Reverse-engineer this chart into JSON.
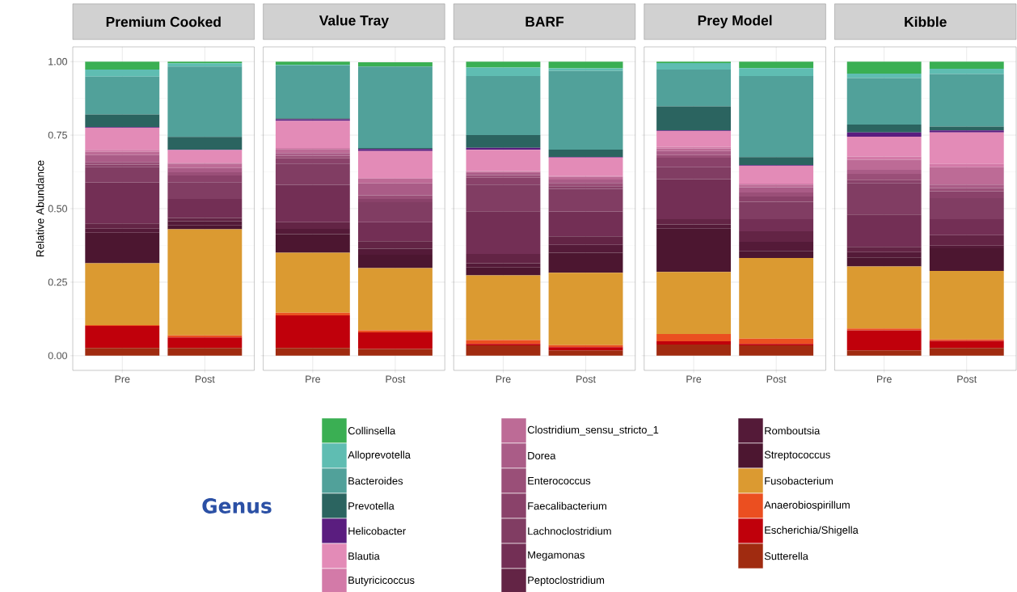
{
  "chart_data": [
    {
      "type": "bar",
      "stacked": true,
      "title": "Premium Cooked",
      "ylabel": "Relative Abundance",
      "legend": "bottom",
      "legend_title": "Genus",
      "grid": true,
      "categories": [
        "Pre",
        "Post"
      ],
      "ylim": [
        -0.05,
        1.05
      ],
      "yticks": [
        {
          "value": 0,
          "label": "0.00"
        },
        {
          "value": 0.25,
          "label": "0.25"
        },
        {
          "value": 0.5,
          "label": "0.50"
        },
        {
          "value": 0.75,
          "label": "0.75"
        },
        {
          "value": 1,
          "label": "1.00"
        }
      ],
      "series": [
        {
          "name": "Sutterella",
          "color": "#a02b10",
          "values": [
            0.026,
            0.026
          ]
        },
        {
          "name": "Escherichia/Shigella",
          "color": "#c0000b",
          "values": [
            0.075,
            0.036
          ]
        },
        {
          "name": "Anaerobiospirillum",
          "color": "#eb4f20",
          "values": [
            0.003,
            0.007
          ]
        },
        {
          "name": "Fusobacterium",
          "color": "#db9a31",
          "values": [
            0.21,
            0.361
          ]
        },
        {
          "name": "Streptococcus",
          "color": "#4c1630",
          "values": [
            0.104,
            0.013
          ]
        },
        {
          "name": "Romboutsia",
          "color": "#541a38",
          "values": [
            0.014,
            0.014
          ]
        },
        {
          "name": "Peptoclostridium",
          "color": "#632445",
          "values": [
            0.018,
            0.011
          ]
        },
        {
          "name": "Megamonas",
          "color": "#732f55",
          "values": [
            0.139,
            0.065
          ]
        },
        {
          "name": "Lachnoclostridium",
          "color": "#813d63",
          "values": [
            0.052,
            0.057
          ]
        },
        {
          "name": "Faecalibacterium",
          "color": "#8a426a",
          "values": [
            0.009,
            0.023
          ]
        },
        {
          "name": "Enterococcus",
          "color": "#9a4f78",
          "values": [
            0.009,
            0.011
          ]
        },
        {
          "name": "Dorea",
          "color": "#aa5c87",
          "values": [
            0.023,
            0.014
          ]
        },
        {
          "name": "Clostridium_sensu_stricto_1",
          "color": "#bd6b96",
          "values": [
            0.012,
            0.015
          ]
        },
        {
          "name": "Butyricicoccus",
          "color": "#d37aa8",
          "values": [
            0.006,
            0.003
          ]
        },
        {
          "name": "Blautia",
          "color": "#e38bb7",
          "values": [
            0.075,
            0.043
          ]
        },
        {
          "name": "Helicobacter",
          "color": "#5a1d7f",
          "values": [
            0.002,
            0.002
          ]
        },
        {
          "name": "Prevotella",
          "color": "#2b6460",
          "values": [
            0.043,
            0.043
          ]
        },
        {
          "name": "Bacteroides",
          "color": "#51a19a",
          "values": [
            0.129,
            0.239
          ]
        },
        {
          "name": "Alloprevotella",
          "color": "#5fbdb2",
          "values": [
            0.024,
            0.011
          ]
        },
        {
          "name": "Collinsella",
          "color": "#3aaf53",
          "values": [
            0.027,
            0.006
          ]
        }
      ]
    },
    {
      "type": "bar",
      "stacked": true,
      "title": "Value Tray",
      "grid": true,
      "tick_labels": "x",
      "categories": [
        "Pre",
        "Post"
      ],
      "ylim": [
        -0.05,
        1.05
      ],
      "yticks": [
        0,
        0.25,
        0.5,
        0.75,
        1
      ],
      "series": [
        {
          "color": "#a02b10",
          "values": [
            0.026,
            0.023
          ]
        },
        {
          "color": "#c0000b",
          "values": [
            0.111,
            0.056
          ]
        },
        {
          "color": "#eb4f20",
          "values": [
            0.009,
            0.007
          ]
        },
        {
          "color": "#db9a31",
          "values": [
            0.204,
            0.212
          ]
        },
        {
          "color": "#4c1630",
          "values": [
            0.063,
            0.045
          ]
        },
        {
          "color": "#541a38",
          "values": [
            0.018,
            0.021
          ]
        },
        {
          "color": "#632445",
          "values": [
            0.023,
            0.025
          ]
        },
        {
          "color": "#732f55",
          "values": [
            0.127,
            0.065
          ]
        },
        {
          "color": "#813d63",
          "values": [
            0.072,
            0.068
          ]
        },
        {
          "color": "#8a426a",
          "values": [
            0.018,
            0.011
          ]
        },
        {
          "color": "#9a4f78",
          "values": [
            0.009,
            0.012
          ]
        },
        {
          "color": "#aa5c87",
          "values": [
            0.009,
            0.041
          ]
        },
        {
          "color": "#bd6b96",
          "values": [
            0.014,
            0.016
          ]
        },
        {
          "color": "#d37aa8",
          "values": [
            0.003,
            0.002
          ]
        },
        {
          "color": "#e38bb7",
          "values": [
            0.092,
            0.092
          ]
        },
        {
          "color": "#5a1d7f",
          "values": [
            0.006,
            0.007
          ]
        },
        {
          "color": "#2b6460",
          "values": [
            0.003,
            0.003
          ]
        },
        {
          "color": "#51a19a",
          "values": [
            0.18,
            0.277
          ]
        },
        {
          "color": "#5fbdb2",
          "values": [
            0.002,
            null
          ]
        },
        {
          "color": "#3aaf53",
          "values": [
            0.011,
            0.015
          ]
        }
      ]
    },
    {
      "type": "bar",
      "stacked": true,
      "title": "BARF",
      "grid": true,
      "tick_labels": "x",
      "categories": [
        "Pre",
        "Post"
      ],
      "ylim": [
        -0.05,
        1.05
      ],
      "yticks": [
        0,
        0.25,
        0.5,
        0.75,
        1
      ],
      "series": [
        {
          "color": "#a02b10",
          "values": [
            0.035,
            0.018
          ]
        },
        {
          "color": "#c0000b",
          "values": [
            0.005,
            0.011
          ]
        },
        {
          "color": "#eb4f20",
          "values": [
            0.013,
            0.007
          ]
        },
        {
          "color": "#db9a31",
          "values": [
            0.22,
            0.246
          ]
        },
        {
          "color": "#4c1630",
          "values": [
            0.027,
            0.068
          ]
        },
        {
          "color": "#541a38",
          "values": [
            0.014,
            0.027
          ]
        },
        {
          "color": "#632445",
          "values": [
            0.032,
            0.029
          ]
        },
        {
          "color": "#732f55",
          "values": [
            0.145,
            0.084
          ]
        },
        {
          "color": "#813d63",
          "values": [
            0.091,
            0.077
          ]
        },
        {
          "color": "#8a426a",
          "values": [
            0.023,
            0.009
          ]
        },
        {
          "color": "#9a4f78",
          "values": [
            0.009,
            0.011
          ]
        },
        {
          "color": "#aa5c87",
          "values": [
            0.007,
            0.012
          ]
        },
        {
          "color": "#bd6b96",
          "values": [
            0.005,
            0.009
          ]
        },
        {
          "color": "#d37aa8",
          "values": [
            0.002,
            0.003
          ]
        },
        {
          "color": "#e38bb7",
          "values": [
            0.072,
            0.063
          ]
        },
        {
          "color": "#5a1d7f",
          "values": [
            0.007,
            0.002
          ]
        },
        {
          "color": "#2b6460",
          "values": [
            0.043,
            0.025
          ]
        },
        {
          "color": "#51a19a",
          "values": [
            0.201,
            0.268
          ]
        },
        {
          "color": "#5fbdb2",
          "values": [
            0.029,
            0.008
          ]
        },
        {
          "color": "#3aaf53",
          "values": [
            0.02,
            0.023
          ]
        }
      ]
    },
    {
      "type": "bar",
      "stacked": true,
      "title": "Prey Model",
      "grid": true,
      "tick_labels": "x",
      "categories": [
        "Pre",
        "Post"
      ],
      "ylim": [
        -0.05,
        1.05
      ],
      "yticks": [
        0,
        0.25,
        0.5,
        0.75,
        1
      ],
      "series": [
        {
          "color": "#a02b10",
          "values": [
            0.038,
            0.035
          ]
        },
        {
          "color": "#c0000b",
          "values": [
            0.011,
            0.005
          ]
        },
        {
          "color": "#eb4f20",
          "values": [
            0.025,
            0.018
          ]
        },
        {
          "color": "#db9a31",
          "values": [
            0.211,
            0.274
          ]
        },
        {
          "color": "#4c1630",
          "values": [
            0.147,
            0.023
          ]
        },
        {
          "color": "#541a38",
          "values": [
            0.014,
            0.032
          ]
        },
        {
          "color": "#632445",
          "values": [
            0.018,
            0.036
          ]
        },
        {
          "color": "#732f55",
          "values": [
            0.136,
            0.041
          ]
        },
        {
          "color": "#813d63",
          "values": [
            0.041,
            0.059
          ]
        },
        {
          "color": "#8a426a",
          "values": [
            0.032,
            0.018
          ]
        },
        {
          "color": "#9a4f78",
          "values": [
            0.009,
            0.014
          ]
        },
        {
          "color": "#aa5c87",
          "values": [
            0.014,
            0.018
          ]
        },
        {
          "color": "#bd6b96",
          "values": [
            0.009,
            0.009
          ]
        },
        {
          "color": "#d37aa8",
          "values": [
            0.005,
            0.003
          ]
        },
        {
          "color": "#e38bb7",
          "values": [
            0.054,
            0.061
          ]
        },
        {
          "color": "#5a1d7f",
          "values": [
            0.002,
            0.002
          ]
        },
        {
          "color": "#2b6460",
          "values": [
            0.082,
            0.027
          ]
        },
        {
          "color": "#51a19a",
          "values": [
            0.125,
            0.276
          ]
        },
        {
          "color": "#5fbdb2",
          "values": [
            0.022,
            0.027
          ]
        },
        {
          "color": "#3aaf53",
          "values": [
            0.005,
            0.022
          ]
        }
      ]
    },
    {
      "type": "bar",
      "stacked": true,
      "title": "Kibble",
      "grid": true,
      "tick_labels": "x",
      "categories": [
        "Pre",
        "Post"
      ],
      "ylim": [
        -0.05,
        1.05
      ],
      "yticks": [
        0,
        0.25,
        0.5,
        0.75,
        1
      ],
      "series": [
        {
          "color": "#a02b10",
          "values": [
            0.018,
            0.026
          ]
        },
        {
          "color": "#c0000b",
          "values": [
            0.068,
            0.024
          ]
        },
        {
          "color": "#eb4f20",
          "values": [
            0.006,
            0.005
          ]
        },
        {
          "color": "#db9a31",
          "values": [
            0.211,
            0.233
          ]
        },
        {
          "color": "#4c1630",
          "values": [
            0.031,
            0.077
          ]
        },
        {
          "color": "#541a38",
          "values": [
            0.018,
            0.009
          ]
        },
        {
          "color": "#632445",
          "values": [
            0.018,
            0.036
          ]
        },
        {
          "color": "#732f55",
          "values": [
            0.11,
            0.054
          ]
        },
        {
          "color": "#813d63",
          "values": [
            0.106,
            0.072
          ]
        },
        {
          "color": "#8a426a",
          "values": [
            0.011,
            0.023
          ]
        },
        {
          "color": "#9a4f78",
          "values": [
            0.021,
            0.011
          ]
        },
        {
          "color": "#aa5c87",
          "values": [
            0.014,
            0.012
          ]
        },
        {
          "color": "#bd6b96",
          "values": [
            0.034,
            0.059
          ]
        },
        {
          "color": "#d37aa8",
          "values": [
            0.011,
            0.011
          ]
        },
        {
          "color": "#e38bb7",
          "values": [
            0.068,
            0.107
          ]
        },
        {
          "color": "#5a1d7f",
          "values": [
            0.014,
            0.007
          ]
        },
        {
          "color": "#2b6460",
          "values": [
            0.027,
            0.013
          ]
        },
        {
          "color": "#51a19a",
          "values": [
            0.158,
            0.179
          ]
        },
        {
          "color": "#5fbdb2",
          "values": [
            0.015,
            0.018
          ]
        },
        {
          "color": "#3aaf53",
          "values": [
            0.041,
            0.024
          ]
        }
      ]
    }
  ]
}
